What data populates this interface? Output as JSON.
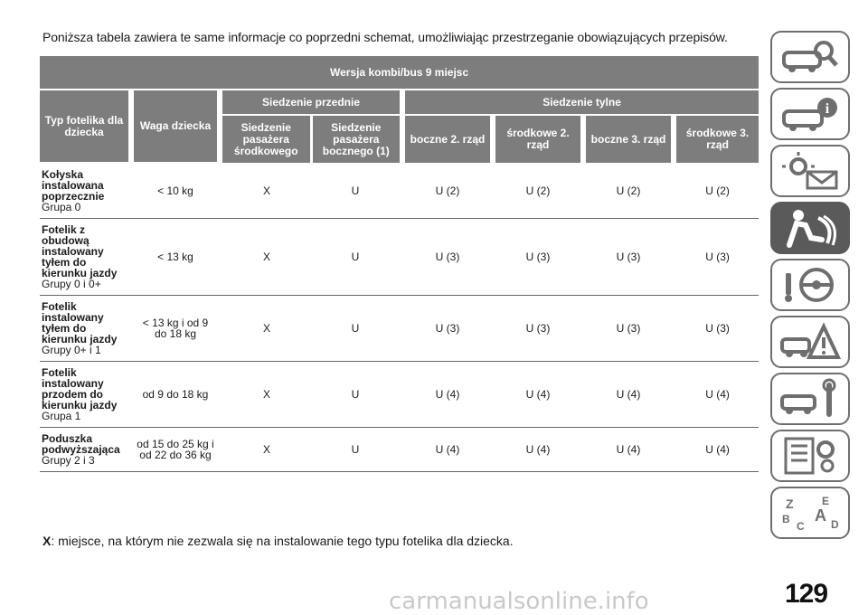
{
  "intro_text": "Poniższa tabela zawiera te same informacje co poprzedni schemat, umożliwiając przestrzeganie obowiązujących przepisów.",
  "table": {
    "version_header": "Wersja kombi/bus 9 miejsc",
    "type_header": "Typ fotelika dla dziecka",
    "weight_header": "Waga dziecka",
    "front_seat_header": "Siedzenie przednie",
    "rear_seats_header": "Siedzenie tylne",
    "sub_headers": [
      "Siedzenie pasażera środkowego",
      "Siedzenie pasażera bocznego (1)",
      "boczne 2. rząd",
      "środkowe 2. rząd",
      "boczne 3. rząd",
      "środkowe 3. rząd"
    ],
    "rows": [
      {
        "type_bold": "Kołyska instalowana poprzecznie",
        "type_normal": "Grupa 0",
        "weight": "< 10 kg",
        "values": [
          "X",
          "U",
          "U (2)",
          "U (2)",
          "U (2)",
          "U (2)"
        ]
      },
      {
        "type_bold": "Fotelik z obudową instalowany tyłem do kierunku jazdy",
        "type_normal": "Grupy 0 i 0+",
        "weight": "< 13 kg",
        "values": [
          "X",
          "U",
          "U (3)",
          "U (3)",
          "U (3)",
          "U (3)"
        ]
      },
      {
        "type_bold": "Fotelik instalowany tyłem do kierunku jazdy",
        "type_normal": "Grupy 0+ i 1",
        "weight": "< 13 kg i od 9 do 18 kg",
        "values": [
          "X",
          "U",
          "U (3)",
          "U (3)",
          "U (3)",
          "U (3)"
        ]
      },
      {
        "type_bold": "Fotelik instalowany przodem do kierunku jazdy",
        "type_normal": "Grupa 1",
        "weight": "od 9 do 18 kg",
        "values": [
          "X",
          "U",
          "U (4)",
          "U (4)",
          "U (4)",
          "U (4)"
        ]
      },
      {
        "type_bold": "Poduszka podwyższająca",
        "type_normal": "Grupy 2 i 3",
        "weight": "od 15 do 25 kg i od 22 do 36 kg",
        "values": [
          "X",
          "U",
          "U (4)",
          "U (4)",
          "U (4)",
          "U (4)"
        ]
      }
    ]
  },
  "note": {
    "key": "X",
    "text": ": miejsce, na którym nie zezwala się na instalowanie tego typu fotelika dla dziecka."
  },
  "page_number": "129",
  "watermark": "carmanualsonline.info",
  "side_tabs": [
    "car-search-icon",
    "car-info-icon",
    "warning-lights-icon",
    "safety-airbag-icon",
    "steering-key-icon",
    "car-warning-icon",
    "car-service-icon",
    "specifications-icon",
    "index-icon"
  ],
  "colors": {
    "header_gray": "#7d7d7d",
    "tab_active": "#5a5a5a"
  }
}
